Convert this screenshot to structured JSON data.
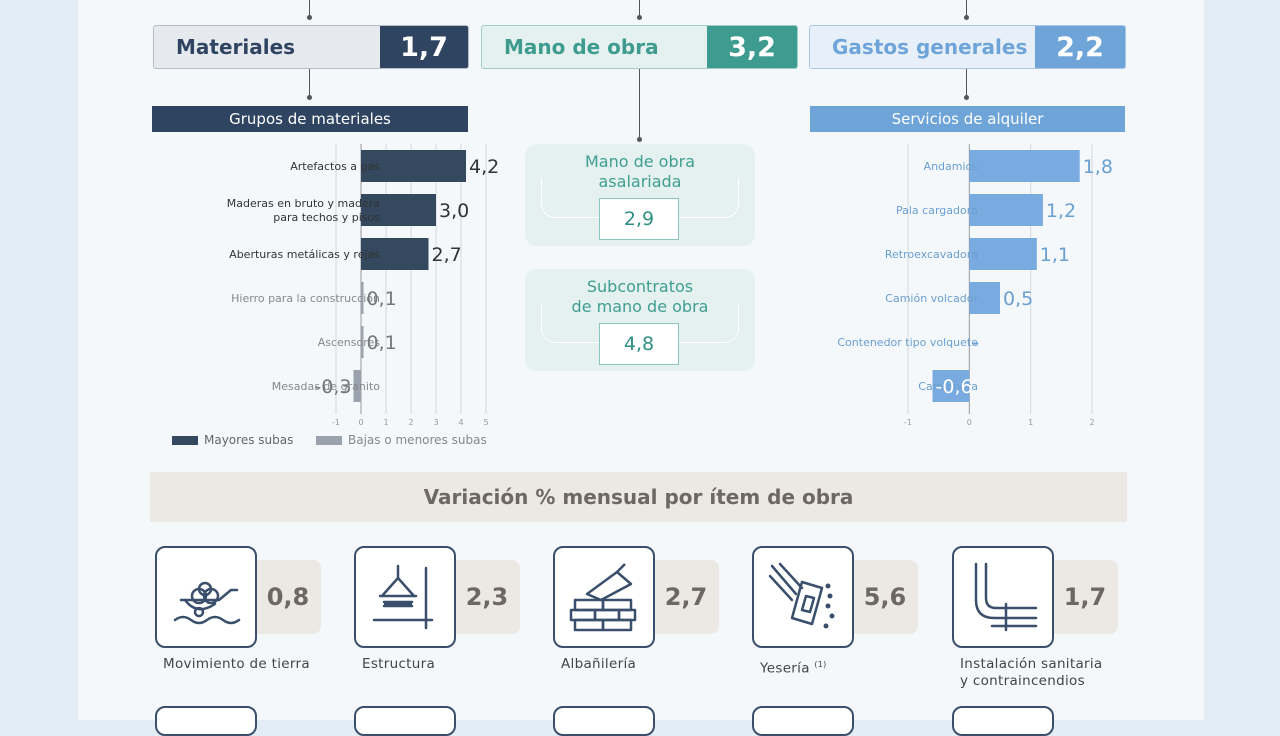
{
  "categories": {
    "materiales": {
      "label": "Materiales",
      "value": "1,7",
      "color": "#2e4460"
    },
    "mano_obra": {
      "label": "Mano de obra",
      "value": "3,2",
      "color": "#3d9c8f"
    },
    "gastos": {
      "label": "Gastos generales",
      "value": "2,2",
      "color": "#6ea4d8"
    }
  },
  "materiales_group": {
    "title": "Grupos de materiales"
  },
  "servicios_group": {
    "title": "Servicios de alquiler"
  },
  "mano_obra_boxes": [
    {
      "title_line1": "Mano de obra",
      "title_line2": "asalariada",
      "value": "2,9"
    },
    {
      "title_line1": "Subcontratos",
      "title_line2": "de mano de obra",
      "value": "4,8"
    }
  ],
  "legend": {
    "major": "Mayores subas",
    "minor": "Bajas o menores subas",
    "major_color": "#34495f",
    "minor_color": "#9aa3ad"
  },
  "chart_data": [
    {
      "type": "bar",
      "orientation": "horizontal",
      "title": "Grupos de materiales",
      "categories": [
        [
          "Artefactos a gas"
        ],
        [
          "Maderas en bruto y madera",
          "para techos y pisos"
        ],
        [
          "Aberturas metálicas y rejas"
        ],
        [
          "Hierro para la construcción"
        ],
        [
          "Ascensores"
        ],
        [
          "Mesadas de granito"
        ]
      ],
      "values": [
        4.2,
        3.0,
        2.7,
        0.1,
        0.1,
        -0.3
      ],
      "labels": [
        "4,2",
        "3,0",
        "2,7",
        "0,1",
        "0,1",
        "-0,3"
      ],
      "highlight": [
        true,
        true,
        true,
        false,
        false,
        false
      ],
      "xlim": [
        -1,
        5
      ],
      "ticks": [
        "-1",
        "0",
        "1",
        "2",
        "3",
        "4",
        "5"
      ],
      "grid": true
    },
    {
      "type": "bar",
      "orientation": "horizontal",
      "title": "Servicios de alquiler",
      "categories": [
        [
          "Andamios"
        ],
        [
          "Pala cargadora"
        ],
        [
          "Retroexcavadora"
        ],
        [
          "Camión volcador"
        ],
        [
          "Contenedor tipo volquete"
        ],
        [
          "Camioneta"
        ]
      ],
      "values": [
        1.8,
        1.2,
        1.1,
        0.5,
        0,
        -0.6
      ],
      "labels": [
        "1,8",
        "1,2",
        "1,1",
        "0,5",
        "-",
        "-0,6"
      ],
      "xlim": [
        -1,
        2
      ],
      "ticks": [
        "-1",
        "0",
        "1",
        "2"
      ],
      "grid": true
    }
  ],
  "section_title": "Variación % mensual por ítem de obra",
  "items": [
    {
      "label": "Movimiento de tierra",
      "label2": "",
      "value": "0,8",
      "icon": "earthwork-icon"
    },
    {
      "label": "Estructura",
      "label2": "",
      "value": "2,3",
      "icon": "structure-icon"
    },
    {
      "label": "Albañilería",
      "label2": "",
      "value": "2,7",
      "icon": "masonry-icon"
    },
    {
      "label": "Yesería",
      "label2": "",
      "sup": "(1)",
      "value": "5,6",
      "icon": "plastering-icon"
    },
    {
      "label": "Instalación sanitaria",
      "label2": "y contraincendios",
      "value": "1,7",
      "icon": "plumbing-icon"
    }
  ]
}
